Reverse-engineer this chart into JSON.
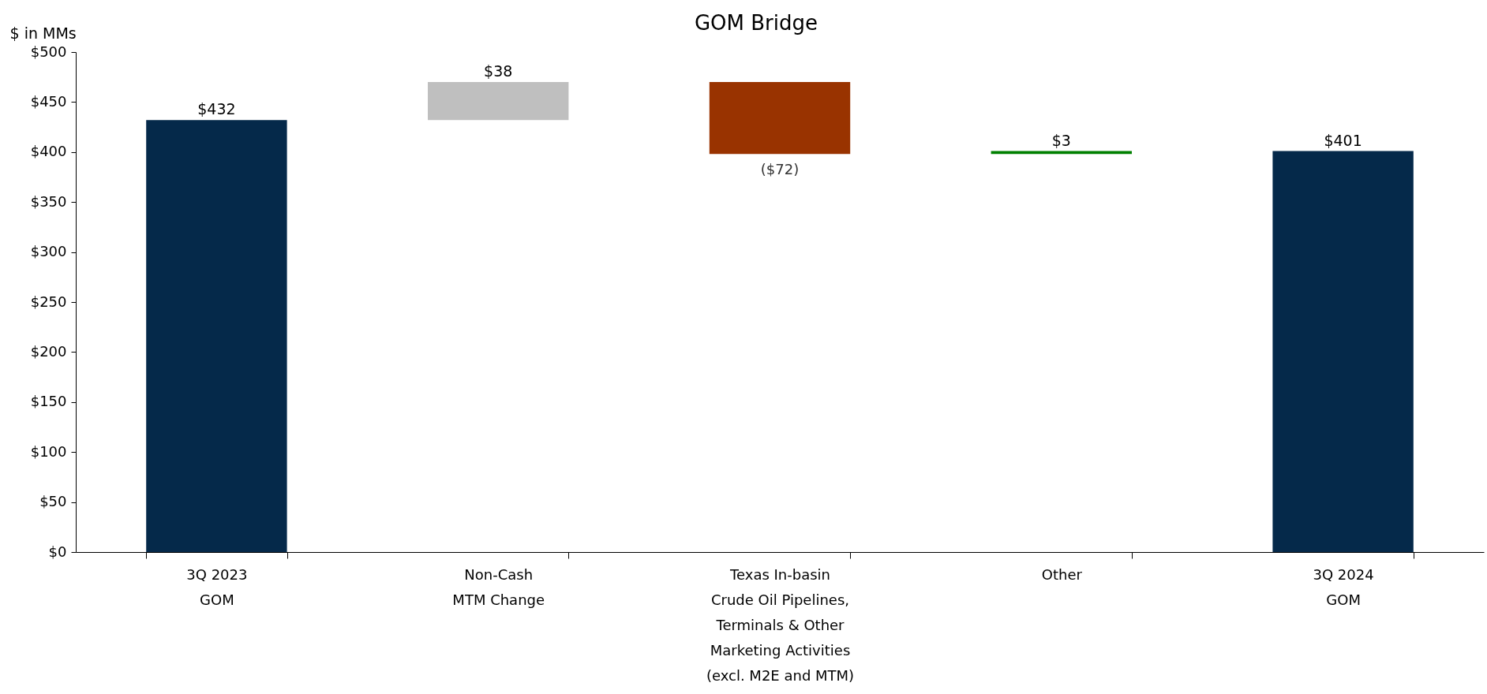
{
  "chart_data": {
    "type": "bar",
    "title": "GOM Bridge",
    "ylabel": "$ in MMs",
    "categories": [
      "3Q 2023\nGOM",
      "Non-Cash\nMTM Change",
      "Texas In-basin\nCrude Oil Pipelines,\nTerminals & Other\nMarketing Activities\n(excl. M2E and MTM)",
      "Other",
      "3Q 2024\nGOM"
    ],
    "values": [
      432,
      38,
      -72,
      3,
      401
    ],
    "base": [
      0,
      432,
      470,
      398,
      0
    ],
    "colors": [
      "#05294a",
      "#bfbfbf",
      "#993300",
      "#008000",
      "#05294a"
    ],
    "value_labels": [
      "$432",
      "$38",
      "($72)",
      "$3",
      "$401"
    ],
    "ylim": [
      0,
      500
    ],
    "yticks": [
      {
        "value": 0,
        "label": "$0"
      },
      {
        "value": 50,
        "label": "$50"
      },
      {
        "value": 100,
        "label": "$100"
      },
      {
        "value": 150,
        "label": "$150"
      },
      {
        "value": 200,
        "label": "$200"
      },
      {
        "value": 250,
        "label": "$250"
      },
      {
        "value": 300,
        "label": "$300"
      },
      {
        "value": 350,
        "label": "$350"
      },
      {
        "value": 400,
        "label": "$400"
      },
      {
        "value": 450,
        "label": "$450"
      },
      {
        "value": 500,
        "label": "$500"
      }
    ],
    "grid": false
  }
}
